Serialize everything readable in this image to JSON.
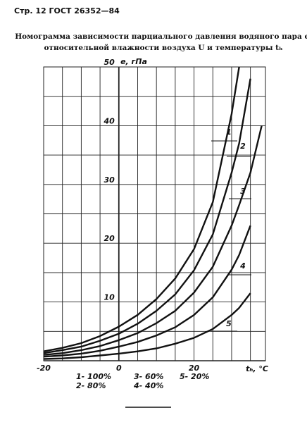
{
  "header": "Стр. 12 ГОСТ 26352—84",
  "chart_data": {
    "type": "line",
    "title": [
      "Номограмма зависимости парциального давления водяного пара e,",
      "относительной влажности воздуха U и температуры tₕ"
    ],
    "ylabel": "e, гПа",
    "xlabel": "tₕ, °C",
    "x": [
      -20,
      -15,
      -10,
      -5,
      0,
      5,
      10,
      15,
      20,
      25,
      30,
      32,
      35,
      38
    ],
    "series": [
      {
        "name": "1",
        "legend_label": "1- 100%",
        "color": "#111",
        "values": [
          1.6,
          2.2,
          3.0,
          4.2,
          5.8,
          7.8,
          10.5,
          14,
          19,
          27,
          42,
          50,
          null,
          null
        ]
      },
      {
        "name": "2",
        "legend_label": "2- 80%",
        "color": "#111",
        "values": [
          1.3,
          1.8,
          2.4,
          3.4,
          4.6,
          6.3,
          8.5,
          11.3,
          15.4,
          21.5,
          32,
          37,
          48,
          null
        ]
      },
      {
        "name": "3",
        "legend_label": "3- 60%",
        "color": "#111",
        "values": [
          1.0,
          1.3,
          1.8,
          2.5,
          3.5,
          4.7,
          6.4,
          8.5,
          11.6,
          16,
          23,
          26.5,
          32,
          40
        ]
      },
      {
        "name": "4",
        "legend_label": "4- 40%",
        "color": "#111",
        "values": [
          0.7,
          0.9,
          1.2,
          1.7,
          2.4,
          3.2,
          4.3,
          5.7,
          7.8,
          10.8,
          15.5,
          18,
          23,
          null
        ]
      },
      {
        "name": "5",
        "legend_label": "5- 20%",
        "color": "#111",
        "values": [
          0.3,
          0.4,
          0.6,
          0.9,
          1.2,
          1.6,
          2.1,
          2.9,
          3.9,
          5.4,
          7.8,
          9,
          11.5,
          null
        ]
      }
    ],
    "xlim": [
      -20,
      39
    ],
    "ylim": [
      0,
      50
    ],
    "xticks": [
      -20,
      0,
      20
    ],
    "yticks": [
      10,
      20,
      30,
      40,
      50
    ],
    "xgrid": [
      -20,
      -15,
      -10,
      -5,
      0,
      5,
      10,
      15,
      20,
      25,
      30,
      35
    ],
    "ygrid": [
      0,
      5,
      10,
      15,
      20,
      25,
      30,
      35,
      40,
      45,
      50
    ],
    "grid": true
  }
}
